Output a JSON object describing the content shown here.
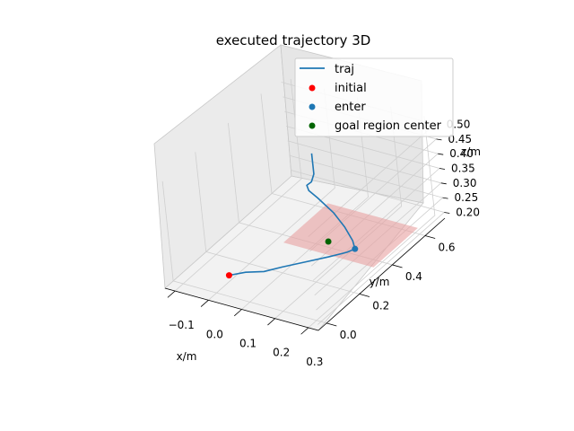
{
  "chart_data": {
    "type": "line3d",
    "title": "executed trajectory 3D",
    "xlabel": "x/m",
    "ylabel": "y/m",
    "zlabel": "z/m",
    "xticks": [
      "−0.1",
      "0.0",
      "0.1",
      "0.2",
      "0.3"
    ],
    "yticks": [
      "0.0",
      "0.2",
      "0.4",
      "0.6"
    ],
    "zticks": [
      "0.20",
      "0.25",
      "0.30",
      "0.35",
      "0.40",
      "0.45",
      "0.50"
    ],
    "xlim": [
      -0.13,
      0.33
    ],
    "ylim": [
      -0.05,
      0.72
    ],
    "zlim": [
      0.18,
      0.52
    ],
    "grid": true,
    "legend_placement": "top-right",
    "legend": [
      {
        "label": "traj",
        "marker": "line",
        "color": "#1f77b4"
      },
      {
        "label": "initial",
        "marker": "dot",
        "color": "#ff0000"
      },
      {
        "label": "enter",
        "marker": "dot",
        "color": "#1f77b4"
      },
      {
        "label": "goal region center",
        "marker": "dot",
        "color": "#006400"
      }
    ],
    "series": [
      {
        "name": "traj",
        "color": "#1f77b4",
        "points": [
          [
            0.0,
            0.08,
            0.2
          ],
          [
            0.03,
            0.12,
            0.2
          ],
          [
            0.07,
            0.15,
            0.2
          ],
          [
            0.1,
            0.2,
            0.2
          ],
          [
            0.14,
            0.26,
            0.2
          ],
          [
            0.18,
            0.32,
            0.2
          ],
          [
            0.21,
            0.37,
            0.2
          ],
          [
            0.22,
            0.4,
            0.2
          ],
          [
            0.21,
            0.41,
            0.22
          ],
          [
            0.19,
            0.41,
            0.26
          ],
          [
            0.16,
            0.41,
            0.3
          ],
          [
            0.11,
            0.42,
            0.33
          ],
          [
            0.08,
            0.43,
            0.34
          ],
          [
            0.07,
            0.44,
            0.35
          ],
          [
            0.08,
            0.45,
            0.36
          ],
          [
            0.09,
            0.45,
            0.39
          ],
          [
            0.09,
            0.45,
            0.42
          ],
          [
            0.09,
            0.45,
            0.46
          ]
        ]
      }
    ],
    "points": [
      {
        "name": "initial",
        "color": "#ff0000",
        "x": 0.0,
        "y": 0.08,
        "z": 0.2
      },
      {
        "name": "enter",
        "color": "#1f77b4",
        "x": 0.22,
        "y": 0.4,
        "z": 0.2
      },
      {
        "name": "goal region center",
        "color": "#006400",
        "x": 0.14,
        "y": 0.4,
        "z": 0.2
      }
    ],
    "goal_region": {
      "x_range": [
        0.04,
        0.31
      ],
      "y_range": [
        0.33,
        0.6
      ],
      "z": 0.2,
      "color": "#e8a0a0"
    }
  }
}
